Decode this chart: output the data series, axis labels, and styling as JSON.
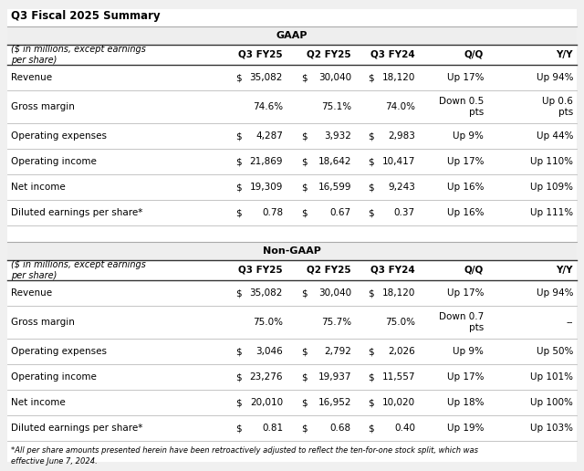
{
  "title": "Q3 Fiscal 2025 Summary",
  "bg_color": "#f0f0f0",
  "table_bg": "#ffffff",
  "gaap": {
    "header": "GAAP",
    "rows": [
      {
        "label": "($ in millions, except earnings\nper share)",
        "is_header": true,
        "dollar1": "",
        "v1": "Q3 FY25",
        "dollar2": "",
        "v2": "Q2 FY25",
        "dollar3": "",
        "v3": "Q3 FY24",
        "qoq": "Q/Q",
        "yoy": "Y/Y"
      },
      {
        "label": "Revenue",
        "is_header": false,
        "dollar1": "$",
        "v1": "35,082",
        "dollar2": "$",
        "v2": "30,040",
        "dollar3": "$",
        "v3": "18,120",
        "qoq": "Up 17%",
        "yoy": "Up 94%"
      },
      {
        "label": "Gross margin",
        "is_header": false,
        "dollar1": "",
        "v1": "74.6%",
        "dollar2": "",
        "v2": "75.1%",
        "dollar3": "",
        "v3": "74.0%",
        "qoq": "Down 0.5\npts",
        "yoy": "Up 0.6\npts"
      },
      {
        "label": "Operating expenses",
        "is_header": false,
        "dollar1": "$",
        "v1": "4,287",
        "dollar2": "$",
        "v2": "3,932",
        "dollar3": "$",
        "v3": "2,983",
        "qoq": "Up 9%",
        "yoy": "Up 44%"
      },
      {
        "label": "Operating income",
        "is_header": false,
        "dollar1": "$",
        "v1": "21,869",
        "dollar2": "$",
        "v2": "18,642",
        "dollar3": "$",
        "v3": "10,417",
        "qoq": "Up 17%",
        "yoy": "Up 110%"
      },
      {
        "label": "Net income",
        "is_header": false,
        "dollar1": "$",
        "v1": "19,309",
        "dollar2": "$",
        "v2": "16,599",
        "dollar3": "$",
        "v3": "9,243",
        "qoq": "Up 16%",
        "yoy": "Up 109%"
      },
      {
        "label": "Diluted earnings per share*",
        "is_header": false,
        "dollar1": "$",
        "v1": "0.78",
        "dollar2": "$",
        "v2": "0.67",
        "dollar3": "$",
        "v3": "0.37",
        "qoq": "Up 16%",
        "yoy": "Up 111%"
      }
    ]
  },
  "nongaap": {
    "header": "Non-GAAP",
    "rows": [
      {
        "label": "($ in millions, except earnings\nper share)",
        "is_header": true,
        "dollar1": "",
        "v1": "Q3 FY25",
        "dollar2": "",
        "v2": "Q2 FY25",
        "dollar3": "",
        "v3": "Q3 FY24",
        "qoq": "Q/Q",
        "yoy": "Y/Y"
      },
      {
        "label": "Revenue",
        "is_header": false,
        "dollar1": "$",
        "v1": "35,082",
        "dollar2": "$",
        "v2": "30,040",
        "dollar3": "$",
        "v3": "18,120",
        "qoq": "Up 17%",
        "yoy": "Up 94%"
      },
      {
        "label": "Gross margin",
        "is_header": false,
        "dollar1": "",
        "v1": "75.0%",
        "dollar2": "",
        "v2": "75.7%",
        "dollar3": "",
        "v3": "75.0%",
        "qoq": "Down 0.7\npts",
        "yoy": "--"
      },
      {
        "label": "Operating expenses",
        "is_header": false,
        "dollar1": "$",
        "v1": "3,046",
        "dollar2": "$",
        "v2": "2,792",
        "dollar3": "$",
        "v3": "2,026",
        "qoq": "Up 9%",
        "yoy": "Up 50%"
      },
      {
        "label": "Operating income",
        "is_header": false,
        "dollar1": "$",
        "v1": "23,276",
        "dollar2": "$",
        "v2": "19,937",
        "dollar3": "$",
        "v3": "11,557",
        "qoq": "Up 17%",
        "yoy": "Up 101%"
      },
      {
        "label": "Net income",
        "is_header": false,
        "dollar1": "$",
        "v1": "20,010",
        "dollar2": "$",
        "v2": "16,952",
        "dollar3": "$",
        "v3": "10,020",
        "qoq": "Up 18%",
        "yoy": "Up 100%"
      },
      {
        "label": "Diluted earnings per share*",
        "is_header": false,
        "dollar1": "$",
        "v1": "0.81",
        "dollar2": "$",
        "v2": "0.68",
        "dollar3": "$",
        "v3": "0.40",
        "qoq": "Up 19%",
        "yoy": "Up 103%"
      }
    ]
  },
  "footnote": "*All per share amounts presented herein have been retroactively adjusted to reflect the ten-for-one stock split, which was\neffective June 7, 2024."
}
